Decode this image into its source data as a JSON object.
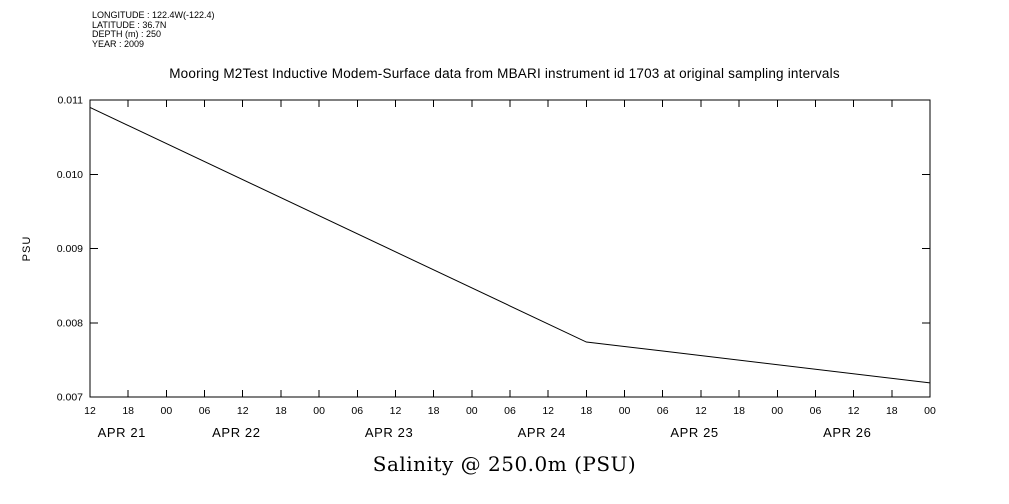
{
  "metadata": {
    "longitude": "LONGITUDE : 122.4W(-122.4)",
    "latitude": "LATITUDE : 36.7N",
    "depth": "DEPTH (m) : 250",
    "year": "YEAR : 2009"
  },
  "title": "Mooring M2Test Inductive Modem-Surface data from MBARI instrument id 1703 at original sampling intervals",
  "footer_label": "Salinity @ 250.0m (PSU)",
  "chart_data": {
    "type": "line",
    "title": "Mooring M2Test Inductive Modem-Surface data from MBARI instrument id 1703 at original sampling intervals",
    "xlabel": "Salinity @ 250.0m (PSU)",
    "ylabel": "PSU",
    "ylim": [
      0.007,
      0.011
    ],
    "yticks": [
      0.007,
      0.008,
      0.009,
      0.01,
      0.011
    ],
    "ytick_labels": [
      "0.007",
      "0.008",
      "0.009",
      "0.010",
      "0.011"
    ],
    "xlim_hours": [
      12,
      144
    ],
    "xtick_hours": [
      12,
      18,
      24,
      30,
      36,
      42,
      48,
      54,
      60,
      66,
      72,
      78,
      84,
      90,
      96,
      102,
      108,
      114,
      120,
      126,
      132,
      138,
      144
    ],
    "xtick_labels": [
      "12",
      "18",
      "00",
      "06",
      "12",
      "18",
      "00",
      "06",
      "12",
      "18",
      "00",
      "06",
      "12",
      "18",
      "00",
      "06",
      "12",
      "18",
      "00",
      "06",
      "12",
      "18",
      "00"
    ],
    "date_labels": [
      {
        "hour": 17,
        "label": "APR 21"
      },
      {
        "hour": 35,
        "label": "APR 22"
      },
      {
        "hour": 59,
        "label": "APR 23"
      },
      {
        "hour": 83,
        "label": "APR 24"
      },
      {
        "hour": 107,
        "label": "APR 25"
      },
      {
        "hour": 131,
        "label": "APR 26"
      }
    ],
    "grid": false,
    "legend": false,
    "line_color": "#000000",
    "background": "#ffffff",
    "series": [
      {
        "name": "Salinity @ 250.0m (PSU)",
        "points_hour_value": [
          [
            12,
            0.0109
          ],
          [
            90,
            0.00774
          ],
          [
            102,
            0.00762
          ],
          [
            144,
            0.00719
          ]
        ]
      }
    ]
  }
}
